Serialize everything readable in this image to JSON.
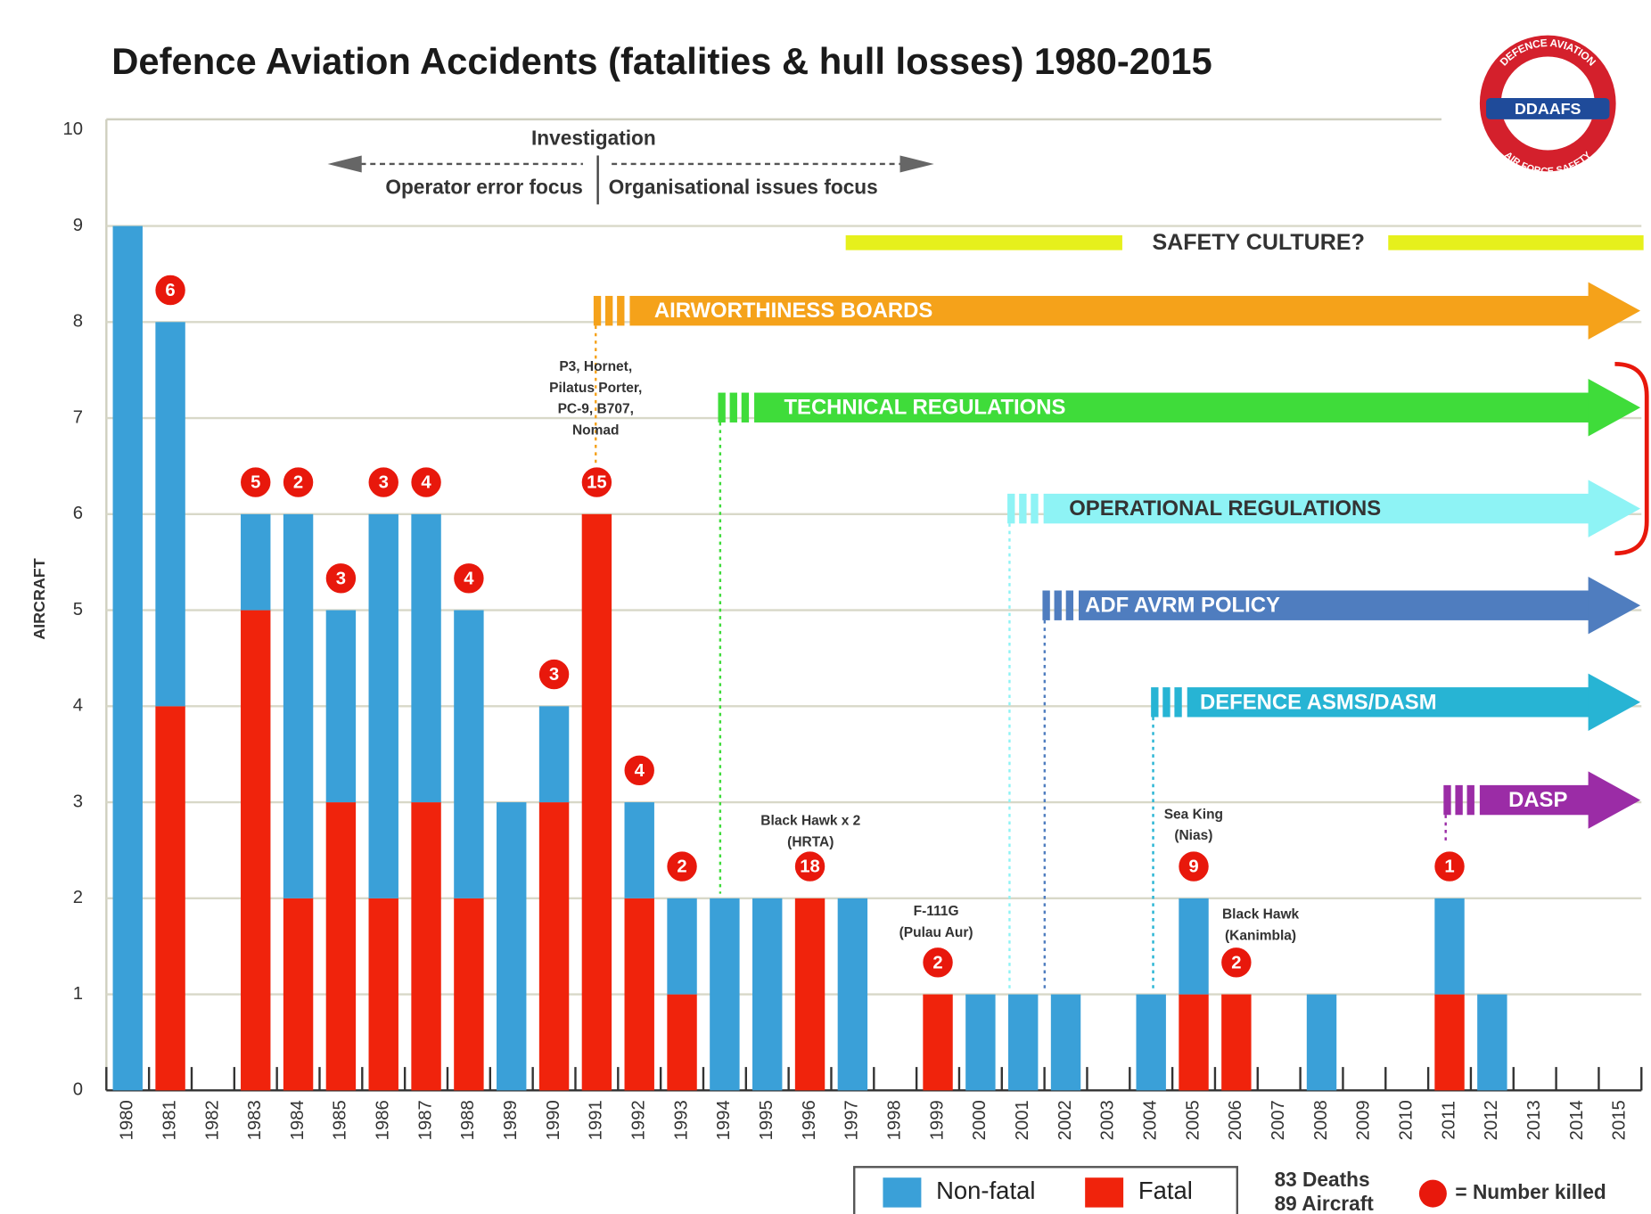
{
  "chart_data": {
    "type": "bar",
    "stacked": true,
    "title": "Defence Aviation Accidents (fatalities & hull losses) 1980-2015",
    "y_label": "AIRCRAFT",
    "categories": [
      "1980",
      "1981",
      "1982",
      "1983",
      "1984",
      "1985",
      "1986",
      "1987",
      "1988",
      "1989",
      "1990",
      "1991",
      "1992",
      "1993",
      "1994",
      "1995",
      "1996",
      "1997",
      "1998",
      "1999",
      "2000",
      "2001",
      "2002",
      "2003",
      "2004",
      "2005",
      "2006",
      "2007",
      "2008",
      "2009",
      "2010",
      "2011",
      "2012",
      "2013",
      "2014",
      "2015"
    ],
    "series": [
      {
        "name": "Non-fatal",
        "color": "#3aa0d8",
        "values": [
          9,
          4,
          0,
          1,
          4,
          2,
          4,
          3,
          3,
          3,
          1,
          0,
          1,
          1,
          2,
          2,
          0,
          2,
          0,
          0,
          1,
          1,
          1,
          0,
          1,
          1,
          0,
          0,
          1,
          0,
          0,
          1,
          1,
          0,
          0,
          0
        ]
      },
      {
        "name": "Fatal",
        "color": "#f0230c",
        "values": [
          0,
          4,
          0,
          5,
          2,
          3,
          2,
          3,
          2,
          0,
          3,
          6,
          2,
          1,
          0,
          0,
          2,
          0,
          0,
          1,
          0,
          0,
          0,
          0,
          0,
          1,
          1,
          0,
          0,
          0,
          0,
          1,
          0,
          0,
          0,
          0
        ]
      }
    ],
    "killed": {
      "name": "= Number killed",
      "color": "#e8180c",
      "values": [
        null,
        6,
        null,
        5,
        2,
        3,
        3,
        4,
        4,
        null,
        3,
        15,
        4,
        2,
        null,
        null,
        18,
        null,
        null,
        2,
        null,
        null,
        null,
        null,
        null,
        9,
        2,
        null,
        null,
        null,
        null,
        1,
        null,
        null,
        null,
        null
      ]
    },
    "summary": [
      "83 Deaths",
      "89 Aircraft"
    ],
    "ylim": [
      0,
      10
    ],
    "yticks": [
      0,
      1,
      2,
      3,
      4,
      5,
      6,
      7,
      8,
      9,
      10
    ],
    "grid": true,
    "investigation": {
      "title": "Investigation",
      "left": "Operator error focus",
      "right": "Organisational issues focus"
    },
    "safety_culture": "SAFETY CULTURE?",
    "initiatives": [
      {
        "label": "AIRWORTHINESS BOARDS",
        "color": "#f5a21a"
      },
      {
        "label": "TECHNICAL REGULATIONS",
        "color": "#3fdc3a"
      },
      {
        "label": "OPERATIONAL REGULATIONS",
        "color": "#8ef3f5"
      },
      {
        "label": "ADF AVRM POLICY",
        "color": "#4f7dbf"
      },
      {
        "label": "DEFENCE ASMS/DASM",
        "color": "#27b4d4"
      },
      {
        "label": "DASP",
        "color": "#9b2ca6"
      }
    ],
    "annotations": [
      {
        "lines": [
          "P3, Hornet,",
          "Pilatus Porter,",
          "PC-9, B707,",
          "Nomad"
        ]
      },
      {
        "lines": [
          "Black Hawk x 2",
          "(HRTA)"
        ]
      },
      {
        "lines": [
          "F-111G",
          "(Pulau Aur)"
        ]
      },
      {
        "lines": [
          "Sea King",
          "(Nias)"
        ]
      },
      {
        "lines": [
          "Black Hawk",
          "(Kanimbla)"
        ]
      }
    ],
    "logo": {
      "name": "DDAAFS",
      "top": "DEFENCE AVIATION",
      "bottom": "AIR FORCE SAFETY"
    }
  }
}
